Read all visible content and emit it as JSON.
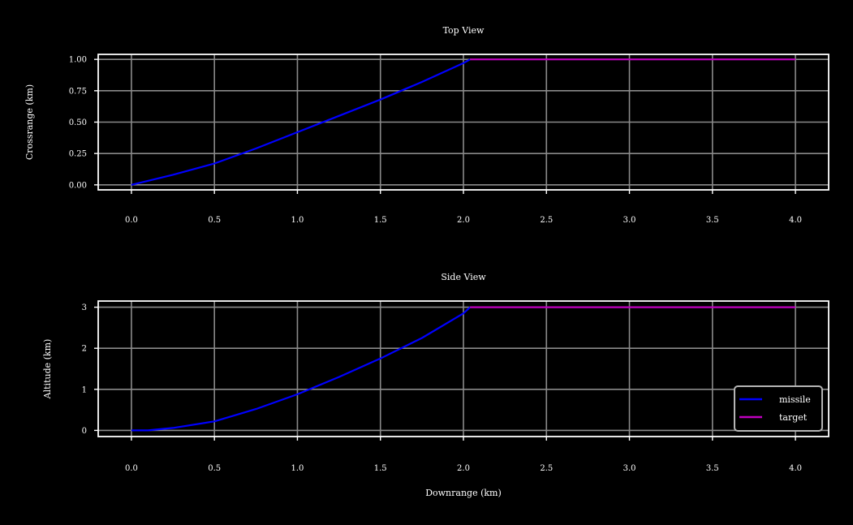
{
  "chart_data": [
    {
      "type": "line",
      "title": "Top View",
      "xlabel": "",
      "ylabel": "Crossrange (km)",
      "xlim": [
        -0.2,
        4.2
      ],
      "ylim": [
        -0.04,
        1.04
      ],
      "xticks": [
        "0.0",
        "0.5",
        "1.0",
        "1.5",
        "2.0",
        "2.5",
        "3.0",
        "3.5",
        "4.0"
      ],
      "yticks": [
        "0.00",
        "0.25",
        "0.50",
        "0.75",
        "1.00"
      ],
      "grid": true,
      "series": [
        {
          "name": "missile",
          "color": "#0000ff",
          "x": [
            0.0,
            0.25,
            0.5,
            0.75,
            1.0,
            1.25,
            1.5,
            1.75,
            2.0,
            2.04
          ],
          "y": [
            0.0,
            0.08,
            0.17,
            0.29,
            0.42,
            0.55,
            0.68,
            0.82,
            0.97,
            1.0
          ]
        },
        {
          "name": "target",
          "color": "#bf00bf",
          "x": [
            2.04,
            4.0
          ],
          "y": [
            1.0,
            1.0
          ]
        }
      ]
    },
    {
      "type": "line",
      "title": "Side View",
      "xlabel": "Downrange (km)",
      "ylabel": "Altitude (km)",
      "xlim": [
        -0.2,
        4.2
      ],
      "ylim": [
        -0.15,
        3.15
      ],
      "xticks": [
        "0.0",
        "0.5",
        "1.0",
        "1.5",
        "2.0",
        "2.5",
        "3.0",
        "3.5",
        "4.0"
      ],
      "yticks": [
        "0",
        "1",
        "2",
        "3"
      ],
      "grid": true,
      "legend": "lower-right",
      "series": [
        {
          "name": "missile",
          "color": "#0000ff",
          "x": [
            0.0,
            0.1,
            0.25,
            0.5,
            0.75,
            1.0,
            1.25,
            1.5,
            1.75,
            2.0,
            2.04
          ],
          "y": [
            0.0,
            0.0,
            0.06,
            0.22,
            0.52,
            0.88,
            1.3,
            1.75,
            2.25,
            2.85,
            3.0
          ]
        },
        {
          "name": "target",
          "color": "#bf00bf",
          "x": [
            2.04,
            4.0
          ],
          "y": [
            3.0,
            3.0
          ]
        }
      ]
    }
  ]
}
